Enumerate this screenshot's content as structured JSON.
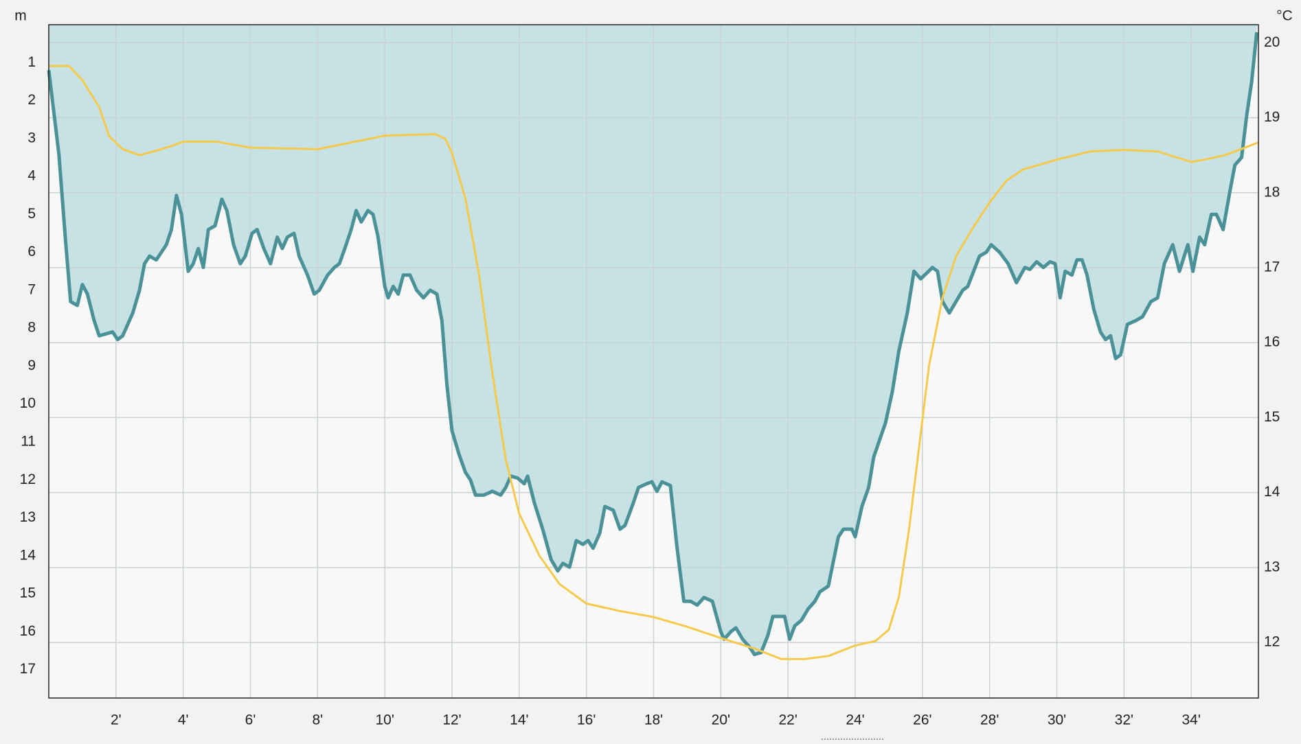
{
  "chart_data": {
    "type": "line",
    "y_label": "m",
    "y2_label": "°C",
    "xlim": [
      0,
      36
    ],
    "xticks": [
      {
        "value": 2,
        "label": "2'"
      },
      {
        "value": 4,
        "label": "4'"
      },
      {
        "value": 6,
        "label": "6'"
      },
      {
        "value": 8,
        "label": "8'"
      },
      {
        "value": 10,
        "label": "10'"
      },
      {
        "value": 12,
        "label": "12'"
      },
      {
        "value": 14,
        "label": "14'"
      },
      {
        "value": 16,
        "label": "16'"
      },
      {
        "value": 18,
        "label": "18'"
      },
      {
        "value": 20,
        "label": "20'"
      },
      {
        "value": 22,
        "label": "22'"
      },
      {
        "value": 24,
        "label": "24'"
      },
      {
        "value": 26,
        "label": "26'"
      },
      {
        "value": 28,
        "label": "28'"
      },
      {
        "value": 30,
        "label": "30'"
      },
      {
        "value": 32,
        "label": "32'"
      },
      {
        "value": 34,
        "label": "34'"
      }
    ],
    "ylim": [
      0,
      17.75
    ],
    "y_inverted": true,
    "yticks": [
      1,
      2,
      3,
      4,
      5,
      6,
      7,
      8,
      9,
      10,
      11,
      12,
      13,
      14,
      15,
      16,
      17
    ],
    "y2lim": [
      11.26,
      20.24
    ],
    "y2ticks": [
      12,
      13,
      14,
      15,
      16,
      17,
      18,
      19,
      20
    ],
    "grid": true,
    "series": [
      {
        "color": "#4a9198",
        "fill": "#c6e2e5",
        "x": [
          0,
          0.3,
          0.5,
          0.65,
          0.85,
          1.0,
          1.15,
          1.35,
          1.5,
          1.9,
          2.05,
          2.2,
          2.5,
          2.7,
          2.85,
          3.0,
          3.2,
          3.5,
          3.65,
          3.8,
          3.95,
          4.15,
          4.3,
          4.45,
          4.6,
          4.75,
          4.95,
          5.15,
          5.3,
          5.5,
          5.7,
          5.85,
          6.05,
          6.2,
          6.4,
          6.6,
          6.8,
          6.95,
          7.1,
          7.3,
          7.45,
          7.7,
          7.9,
          8.05,
          8.3,
          8.5,
          8.65,
          8.85,
          9.0,
          9.15,
          9.3,
          9.5,
          9.65,
          9.8,
          10.0,
          10.1,
          10.25,
          10.4,
          10.55,
          10.75,
          10.95,
          11.15,
          11.35,
          11.55,
          11.7,
          11.85,
          12.0,
          12.2,
          12.4,
          12.55,
          12.7,
          12.95,
          13.2,
          13.45,
          13.6,
          13.75,
          13.95,
          14.15,
          14.25,
          14.45,
          14.7,
          14.95,
          15.15,
          15.3,
          15.5,
          15.7,
          15.9,
          16.05,
          16.2,
          16.4,
          16.55,
          16.8,
          17.0,
          17.15,
          17.4,
          17.55,
          17.8,
          17.95,
          18.1,
          18.25,
          18.5,
          18.7,
          18.9,
          19.1,
          19.3,
          19.5,
          19.75,
          20.0,
          20.1,
          20.3,
          20.45,
          20.65,
          20.85,
          21.0,
          21.2,
          21.4,
          21.55,
          21.9,
          22.05,
          22.2,
          22.4,
          22.6,
          22.8,
          22.95,
          23.2,
          23.5,
          23.65,
          23.9,
          24.0,
          24.2,
          24.4,
          24.55,
          24.9,
          25.1,
          25.3,
          25.55,
          25.75,
          25.95,
          26.3,
          26.45,
          26.6,
          26.8,
          27.0,
          27.2,
          27.35,
          27.7,
          27.9,
          28.05,
          28.3,
          28.55,
          28.8,
          29.05,
          29.2,
          29.4,
          29.6,
          29.8,
          29.95,
          30.1,
          30.25,
          30.45,
          30.6,
          30.75,
          30.9,
          31.1,
          31.3,
          31.45,
          31.6,
          31.75,
          31.9,
          32.1,
          32.35,
          32.55,
          32.8,
          33.0,
          33.2,
          33.45,
          33.65,
          33.9,
          34.05,
          34.25,
          34.4,
          34.6,
          34.75,
          34.95,
          35.15,
          35.3,
          35.5,
          35.65,
          35.8,
          35.95
        ],
        "values": [
          1.2,
          3.4,
          5.7,
          7.3,
          7.4,
          6.85,
          7.1,
          7.8,
          8.2,
          8.1,
          8.3,
          8.2,
          7.6,
          7.0,
          6.3,
          6.1,
          6.2,
          5.8,
          5.4,
          4.5,
          5.0,
          6.5,
          6.3,
          5.9,
          6.4,
          5.4,
          5.3,
          4.6,
          4.9,
          5.8,
          6.3,
          6.1,
          5.5,
          5.4,
          5.9,
          6.3,
          5.6,
          5.9,
          5.6,
          5.5,
          6.1,
          6.6,
          7.1,
          7.0,
          6.6,
          6.4,
          6.3,
          5.8,
          5.4,
          4.9,
          5.2,
          4.9,
          5.0,
          5.6,
          6.9,
          7.2,
          6.9,
          7.1,
          6.6,
          6.6,
          7.0,
          7.2,
          7.0,
          7.1,
          7.8,
          9.5,
          10.7,
          11.3,
          11.8,
          12.0,
          12.4,
          12.4,
          12.3,
          12.4,
          12.2,
          11.9,
          11.95,
          12.1,
          11.9,
          12.6,
          13.3,
          14.1,
          14.4,
          14.2,
          14.3,
          13.6,
          13.7,
          13.6,
          13.8,
          13.4,
          12.7,
          12.8,
          13.3,
          13.2,
          12.6,
          12.2,
          12.1,
          12.05,
          12.3,
          12.05,
          12.15,
          13.8,
          15.2,
          15.2,
          15.3,
          15.1,
          15.2,
          16.0,
          16.2,
          16.0,
          15.9,
          16.2,
          16.4,
          16.6,
          16.55,
          16.1,
          15.6,
          15.6,
          16.2,
          15.85,
          15.7,
          15.4,
          15.2,
          14.95,
          14.8,
          13.5,
          13.3,
          13.3,
          13.5,
          12.7,
          12.2,
          11.4,
          10.5,
          9.7,
          8.6,
          7.6,
          6.5,
          6.7,
          6.4,
          6.5,
          7.3,
          7.6,
          7.3,
          7.0,
          6.9,
          6.1,
          6.0,
          5.8,
          6.0,
          6.3,
          6.8,
          6.4,
          6.45,
          6.25,
          6.4,
          6.25,
          6.3,
          7.2,
          6.5,
          6.6,
          6.2,
          6.2,
          6.6,
          7.5,
          8.1,
          8.3,
          8.2,
          8.8,
          8.7,
          7.9,
          7.8,
          7.7,
          7.3,
          7.2,
          6.3,
          5.8,
          6.5,
          5.8,
          6.5,
          5.6,
          5.8,
          5.0,
          5.0,
          5.4,
          4.4,
          3.7,
          3.5,
          2.4,
          1.5,
          0.2
        ]
      },
      {
        "color": "#f5c94a",
        "axis": "y2",
        "x": [
          0,
          0.6,
          1.0,
          1.5,
          1.8,
          2.2,
          2.7,
          3.2,
          3.7,
          4.0,
          5.0,
          6.0,
          8.0,
          9.0,
          10.0,
          11.5,
          11.8,
          12.0,
          12.4,
          12.8,
          13.2,
          13.6,
          14.0,
          14.6,
          15.2,
          16.0,
          17.0,
          18.0,
          19.0,
          20.0,
          21.0,
          21.8,
          22.5,
          23.2,
          24.0,
          24.6,
          25.0,
          25.3,
          25.6,
          25.9,
          26.2,
          26.6,
          27.0,
          27.5,
          28.0,
          28.5,
          29.0,
          30.0,
          31.0,
          32.0,
          33.0,
          34.0,
          34.5,
          35.0,
          35.6,
          36.0
        ],
        "values": [
          19.69,
          19.69,
          19.5,
          19.14,
          18.75,
          18.58,
          18.5,
          18.56,
          18.63,
          18.68,
          18.68,
          18.6,
          18.58,
          18.67,
          18.76,
          18.78,
          18.72,
          18.53,
          17.92,
          16.92,
          15.6,
          14.44,
          13.72,
          13.16,
          12.78,
          12.52,
          12.42,
          12.34,
          12.21,
          12.06,
          11.92,
          11.78,
          11.78,
          11.82,
          11.96,
          12.02,
          12.17,
          12.61,
          13.5,
          14.6,
          15.7,
          16.6,
          17.15,
          17.53,
          17.87,
          18.16,
          18.31,
          18.44,
          18.55,
          18.57,
          18.55,
          18.41,
          18.45,
          18.5,
          18.6,
          18.67
        ]
      }
    ]
  }
}
